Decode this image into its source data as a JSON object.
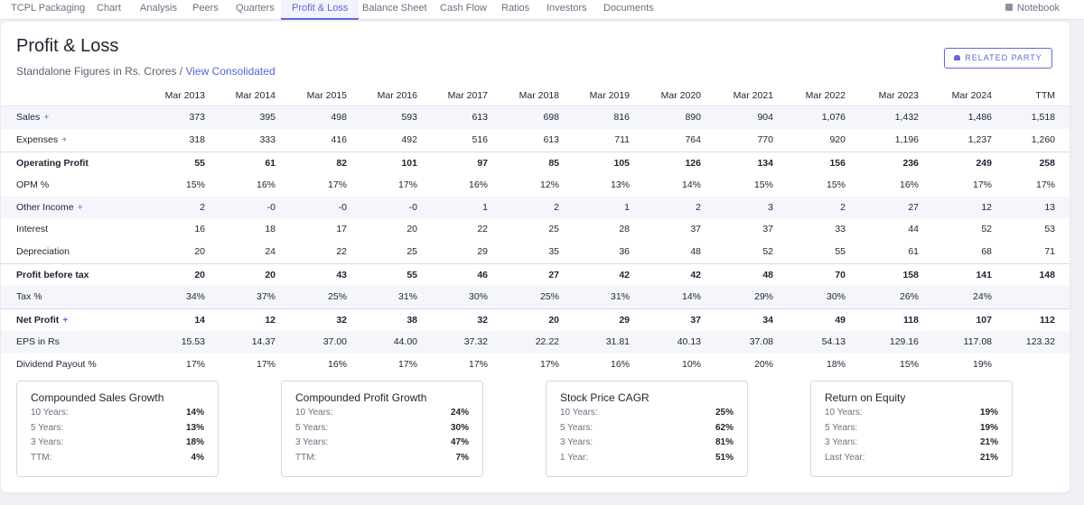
{
  "nav": {
    "tabs": [
      "TCPL Packaging",
      "Chart",
      "Analysis",
      "Peers",
      "Quarters",
      "Profit & Loss",
      "Balance Sheet",
      "Cash Flow",
      "Ratios",
      "Investors",
      "Documents"
    ],
    "active_tab": "Profit & Loss",
    "notebook_label": "Notebook"
  },
  "section": {
    "title": "Profit & Loss",
    "subtitle": "Standalone Figures in Rs. Crores /",
    "link": "View Consolidated",
    "related_party_label": "RELATED PARTY"
  },
  "table": {
    "columns": [
      "Mar 2013",
      "Mar 2014",
      "Mar 2015",
      "Mar 2016",
      "Mar 2017",
      "Mar 2018",
      "Mar 2019",
      "Mar 2020",
      "Mar 2021",
      "Mar 2022",
      "Mar 2023",
      "Mar 2024",
      "TTM"
    ],
    "rows": [
      {
        "label": "Sales",
        "plus": "+",
        "values": [
          "373",
          "395",
          "498",
          "593",
          "613",
          "698",
          "816",
          "890",
          "904",
          "1,076",
          "1,432",
          "1,486",
          "1,518"
        ]
      },
      {
        "label": "Expenses",
        "plus": "+",
        "values": [
          "318",
          "333",
          "416",
          "492",
          "516",
          "613",
          "711",
          "764",
          "770",
          "920",
          "1,196",
          "1,237",
          "1,260"
        ]
      },
      {
        "label": "Operating Profit",
        "plus": "",
        "values": [
          "55",
          "61",
          "82",
          "101",
          "97",
          "85",
          "105",
          "126",
          "134",
          "156",
          "236",
          "249",
          "258"
        ]
      },
      {
        "label": "OPM %",
        "plus": "",
        "values": [
          "15%",
          "16%",
          "17%",
          "17%",
          "16%",
          "12%",
          "13%",
          "14%",
          "15%",
          "15%",
          "16%",
          "17%",
          "17%"
        ]
      },
      {
        "label": "Other Income",
        "plus": "+",
        "values": [
          "2",
          "-0",
          "-0",
          "-0",
          "1",
          "2",
          "1",
          "2",
          "3",
          "2",
          "27",
          "12",
          "13"
        ]
      },
      {
        "label": "Interest",
        "plus": "",
        "values": [
          "16",
          "18",
          "17",
          "20",
          "22",
          "25",
          "28",
          "37",
          "37",
          "33",
          "44",
          "52",
          "53"
        ]
      },
      {
        "label": "Depreciation",
        "plus": "",
        "values": [
          "20",
          "24",
          "22",
          "25",
          "29",
          "35",
          "36",
          "48",
          "52",
          "55",
          "61",
          "68",
          "71"
        ]
      },
      {
        "label": "Profit before tax",
        "plus": "",
        "values": [
          "20",
          "20",
          "43",
          "55",
          "46",
          "27",
          "42",
          "42",
          "48",
          "70",
          "158",
          "141",
          "148"
        ]
      },
      {
        "label": "Tax %",
        "plus": "",
        "values": [
          "34%",
          "37%",
          "25%",
          "31%",
          "30%",
          "25%",
          "31%",
          "14%",
          "29%",
          "30%",
          "26%",
          "24%",
          ""
        ]
      },
      {
        "label": "Net Profit",
        "plus": "+",
        "values": [
          "14",
          "12",
          "32",
          "38",
          "32",
          "20",
          "29",
          "37",
          "34",
          "49",
          "118",
          "107",
          "112"
        ]
      },
      {
        "label": "EPS in Rs",
        "plus": "",
        "values": [
          "15.53",
          "14.37",
          "37.00",
          "44.00",
          "37.32",
          "22.22",
          "31.81",
          "40.13",
          "37.08",
          "54.13",
          "129.16",
          "117.08",
          "123.32"
        ]
      },
      {
        "label": "Dividend Payout %",
        "plus": "",
        "values": [
          "17%",
          "17%",
          "16%",
          "17%",
          "17%",
          "17%",
          "16%",
          "10%",
          "20%",
          "18%",
          "15%",
          "19%",
          ""
        ]
      }
    ]
  },
  "growth": [
    {
      "title": "Compounded Sales Growth",
      "rows": [
        {
          "label": "10 Years:",
          "value": "14%"
        },
        {
          "label": "5 Years:",
          "value": "13%"
        },
        {
          "label": "3 Years:",
          "value": "18%"
        },
        {
          "label": "TTM:",
          "value": "4%"
        }
      ]
    },
    {
      "title": "Compounded Profit Growth",
      "rows": [
        {
          "label": "10 Years:",
          "value": "24%"
        },
        {
          "label": "5 Years:",
          "value": "30%"
        },
        {
          "label": "3 Years:",
          "value": "47%"
        },
        {
          "label": "TTM:",
          "value": "7%"
        }
      ]
    },
    {
      "title": "Stock Price CAGR",
      "rows": [
        {
          "label": "10 Years:",
          "value": "25%"
        },
        {
          "label": "5 Years:",
          "value": "62%"
        },
        {
          "label": "3 Years:",
          "value": "81%"
        },
        {
          "label": "1 Year:",
          "value": "51%"
        }
      ]
    },
    {
      "title": "Return on Equity",
      "rows": [
        {
          "label": "10 Years:",
          "value": "19%"
        },
        {
          "label": "5 Years:",
          "value": "19%"
        },
        {
          "label": "3 Years:",
          "value": "21%"
        },
        {
          "label": "Last Year:",
          "value": "21%"
        }
      ]
    }
  ]
}
